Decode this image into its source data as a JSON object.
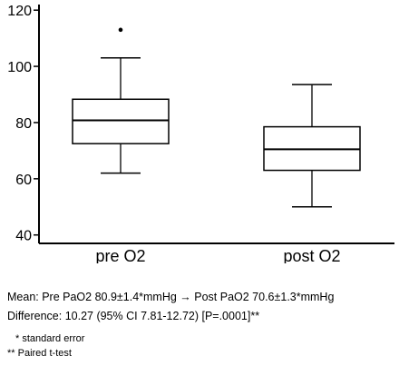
{
  "chart_data": {
    "type": "box",
    "categories": [
      "pre O2",
      "post O2"
    ],
    "ylim": [
      37,
      122
    ],
    "yticks": [
      40,
      60,
      80,
      100,
      120
    ],
    "boxes": [
      {
        "category": "pre O2",
        "whisker_low": 62,
        "q1": 72.5,
        "median": 80.8,
        "q3": 88.3,
        "whisker_high": 103,
        "outliers": [
          113
        ]
      },
      {
        "category": "post O2",
        "whisker_low": 50,
        "q1": 63,
        "median": 70.5,
        "q3": 78.5,
        "whisker_high": 93.5,
        "outliers": []
      }
    ],
    "grid": false
  },
  "caption": {
    "mean_line": "Mean: Pre PaO2 80.9±1.4*mmHg → Post PaO2 70.6±1.3*mmHg",
    "difference_line": "Difference: 10.27 (95% CI 7.81-12.72)  [P=.0001]**",
    "note_standard_error": "* standard error",
    "note_paired_ttest": "** Paired t-test"
  }
}
